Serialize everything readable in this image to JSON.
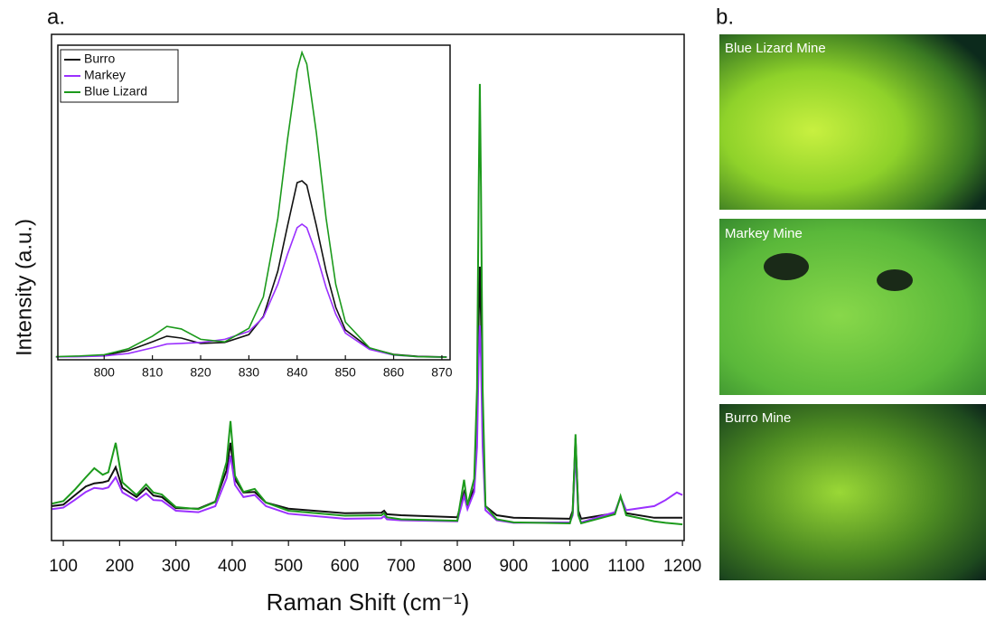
{
  "panel_labels": [
    "a.",
    "b."
  ],
  "photos": [
    {
      "caption": "Blue Lizard Mine"
    },
    {
      "caption": "Markey Mine"
    },
    {
      "caption": "Burro Mine"
    }
  ],
  "chart_data": [
    {
      "type": "line",
      "xlabel": "Raman Shift (cm⁻¹)",
      "ylabel": "Intensity (a.u.)",
      "xlim": [
        79,
        1203
      ],
      "ylim": [
        0,
        100
      ],
      "xticks": [
        100,
        200,
        300,
        400,
        500,
        600,
        700,
        800,
        900,
        1000,
        1100,
        1200
      ],
      "x": [
        80,
        100,
        120,
        140,
        155,
        170,
        180,
        193,
        205,
        230,
        247,
        260,
        275,
        300,
        340,
        370,
        390,
        397,
        405,
        420,
        440,
        460,
        500,
        600,
        665,
        670,
        675,
        700,
        800,
        812,
        818,
        830,
        835,
        838,
        840,
        842,
        845,
        850,
        870,
        900,
        1000,
        1005,
        1010,
        1015,
        1020,
        1080,
        1090,
        1100,
        1150,
        1170,
        1190,
        1200
      ],
      "series": [
        {
          "color": "#111111",
          "values": [
            6.8,
            7.1,
            8.9,
            10.7,
            11.3,
            11.5,
            11.8,
            14.5,
            10.4,
            8.6,
            10.4,
            8.9,
            8.6,
            6.4,
            6.3,
            7.7,
            13.9,
            19.3,
            12.1,
            9.5,
            9.6,
            7.5,
            6.3,
            5.4,
            5.5,
            5.9,
            5.2,
            5.0,
            4.6,
            9.5,
            6.8,
            10.4,
            21.1,
            44.3,
            54.1,
            44.3,
            21.1,
            6.8,
            5.0,
            4.5,
            4.3,
            5.9,
            20.2,
            5.9,
            4.3,
            5.4,
            8.6,
            5.4,
            4.5,
            4.5,
            4.5,
            4.5
          ]
        },
        {
          "color": "#9b30ff",
          "values": [
            6.2,
            6.5,
            8.0,
            9.6,
            10.4,
            10.2,
            10.5,
            12.5,
            9.5,
            7.9,
            9.3,
            8.0,
            7.9,
            5.9,
            5.6,
            6.8,
            12.3,
            16.8,
            11.0,
            8.6,
            9.0,
            6.8,
            5.3,
            4.3,
            4.4,
            4.8,
            4.2,
            4.0,
            3.8,
            8.8,
            6.2,
            9.6,
            18.5,
            36.0,
            42.5,
            36.0,
            18.5,
            6.0,
            4.0,
            3.5,
            3.6,
            5.0,
            17.5,
            5.0,
            3.6,
            5.6,
            8.6,
            6.0,
            6.8,
            8.0,
            9.5,
            9.0
          ]
        },
        {
          "color": "#1c9a1c",
          "values": [
            7.3,
            7.8,
            10.0,
            12.5,
            14.3,
            13.0,
            13.5,
            19.3,
            11.5,
            9.0,
            11.1,
            9.5,
            9.1,
            6.6,
            6.2,
            7.6,
            15.5,
            23.6,
            12.8,
            9.6,
            10.2,
            7.5,
            5.9,
            4.9,
            5.0,
            5.4,
            4.6,
            4.2,
            3.9,
            12.0,
            7.0,
            12.2,
            30.0,
            70.0,
            90.2,
            70.0,
            30.0,
            6.8,
            4.2,
            3.6,
            3.4,
            5.5,
            21.0,
            5.0,
            3.4,
            5.2,
            8.8,
            5.0,
            3.8,
            3.5,
            3.3,
            3.2
          ]
        }
      ]
    },
    {
      "type": "line",
      "legend": "upper left",
      "xlim": [
        790.4,
        871.7
      ],
      "ylim": [
        0,
        100
      ],
      "xticks": [
        800,
        810,
        820,
        830,
        840,
        850,
        860,
        870
      ],
      "x": [
        790,
        795,
        800,
        805,
        810,
        813,
        816,
        820,
        825,
        830,
        833,
        836,
        838,
        840,
        841,
        842,
        844,
        846,
        848,
        850,
        855,
        860,
        865,
        871
      ],
      "series": [
        {
          "name": "Burro",
          "color": "#111111",
          "values": [
            0.9,
            1.1,
            1.4,
            2.9,
            5.7,
            7.5,
            6.9,
            5.2,
            5.5,
            8.0,
            13.8,
            28.2,
            42.5,
            56.3,
            56.9,
            55.5,
            42.5,
            28.2,
            16.7,
            9.5,
            3.7,
            1.7,
            1.1,
            0.9
          ]
        },
        {
          "name": "Markey",
          "color": "#9b30ff",
          "values": [
            0.9,
            1.0,
            1.2,
            2.0,
            3.8,
            5.0,
            5.2,
            5.5,
            6.5,
            9.0,
            13.5,
            24.0,
            33.5,
            42.0,
            43.1,
            42.0,
            33.5,
            23.0,
            14.5,
            8.5,
            3.3,
            1.5,
            1.0,
            0.8
          ]
        },
        {
          "name": "Blue Lizard",
          "color": "#1c9a1c",
          "values": [
            1.0,
            1.2,
            1.6,
            3.5,
            7.5,
            10.6,
            9.8,
            6.5,
            5.7,
            10.0,
            20.0,
            45.0,
            70.0,
            92.0,
            97.7,
            94.0,
            72.0,
            45.0,
            24.0,
            12.0,
            3.8,
            1.6,
            1.0,
            0.8
          ]
        }
      ]
    }
  ]
}
